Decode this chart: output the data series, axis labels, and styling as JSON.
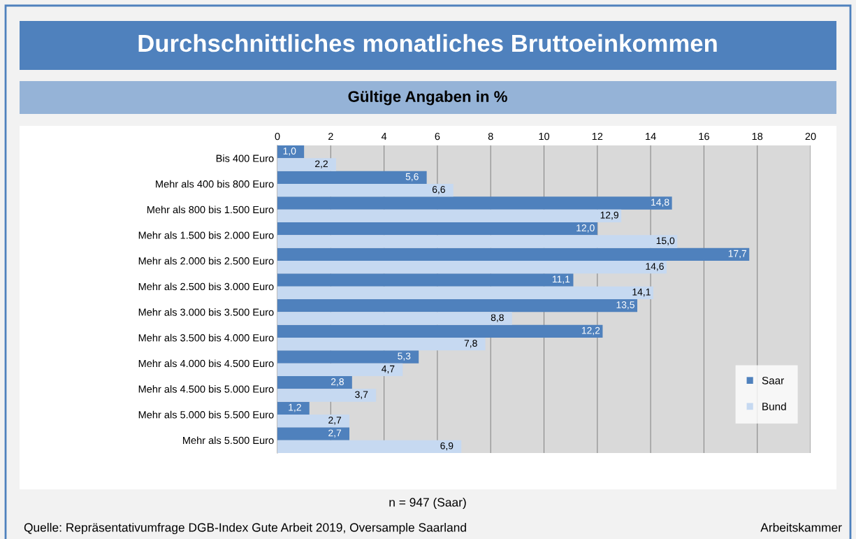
{
  "chart_data": {
    "type": "bar",
    "orientation": "horizontal",
    "title": "Durchschnittliches monatliches Bruttoeinkommen",
    "subtitle": "Gültige Angaben in %",
    "categories": [
      "Bis 400 Euro",
      "Mehr als 400 bis 800 Euro",
      "Mehr als 800 bis 1.500 Euro",
      "Mehr als 1.500 bis 2.000 Euro",
      "Mehr als 2.000 bis 2.500 Euro",
      "Mehr als 2.500 bis 3.000 Euro",
      "Mehr als 3.000 bis 3.500 Euro",
      "Mehr als 3.500 bis 4.000 Euro",
      "Mehr als 4.000 bis 4.500 Euro",
      "Mehr als 4.500 bis 5.000 Euro",
      "Mehr als 5.000 bis 5.500 Euro",
      "Mehr als 5.500 Euro"
    ],
    "series": [
      {
        "name": "Saar",
        "color": "#4f81bd",
        "values": [
          1.0,
          5.6,
          14.8,
          12.0,
          17.7,
          11.1,
          13.5,
          12.2,
          5.3,
          2.8,
          1.2,
          2.7
        ],
        "value_labels": [
          "1,0",
          "5,6",
          "14,8",
          "12,0",
          "17,7",
          "11,1",
          "13,5",
          "12,2",
          "5,3",
          "2,8",
          "1,2",
          "2,7"
        ]
      },
      {
        "name": "Bund",
        "color": "#c6d9f1",
        "values": [
          2.2,
          6.6,
          12.9,
          15.0,
          14.6,
          14.1,
          8.8,
          7.8,
          4.7,
          3.7,
          2.7,
          6.9
        ],
        "value_labels": [
          "2,2",
          "6,6",
          "12,9",
          "15,0",
          "14,6",
          "14,1",
          "8,8",
          "7,8",
          "4,7",
          "3,7",
          "2,7",
          "6,9"
        ]
      }
    ],
    "xlim": [
      0,
      20
    ],
    "xticks": [
      0,
      2,
      4,
      6,
      8,
      10,
      12,
      14,
      16,
      18,
      20
    ],
    "grid": "x",
    "legend": "bottom right",
    "annotations": [
      "n = 947 (Saar)",
      "Quelle: Repräsentativumfrage DGB-Index Gute Arbeit 2019, Oversample Saarland",
      "Arbeitskammer"
    ]
  }
}
